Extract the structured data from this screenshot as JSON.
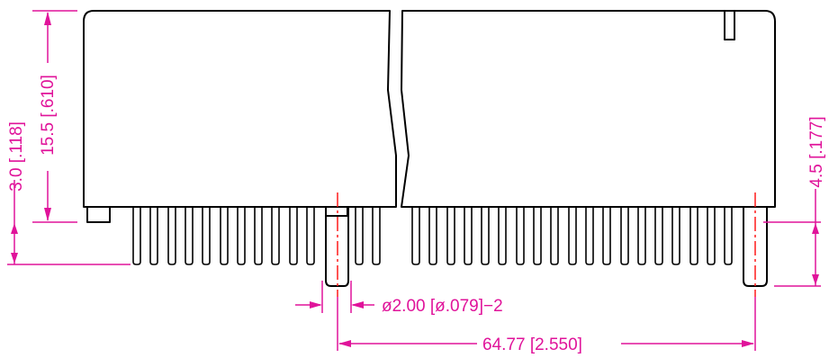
{
  "colors": {
    "outline": "#000000",
    "dimension": "#e0139a",
    "centerline": "#ff1a1a",
    "background": "#ffffff"
  },
  "dimensions": {
    "height_body": "15.5 [.610]",
    "height_standoff": "3.0 [.118]",
    "height_pin_right": "4.5 [.177]",
    "hole_diameter": "ø2.00 [ø.079]−2",
    "pitch": "64.77 [2.550]"
  }
}
